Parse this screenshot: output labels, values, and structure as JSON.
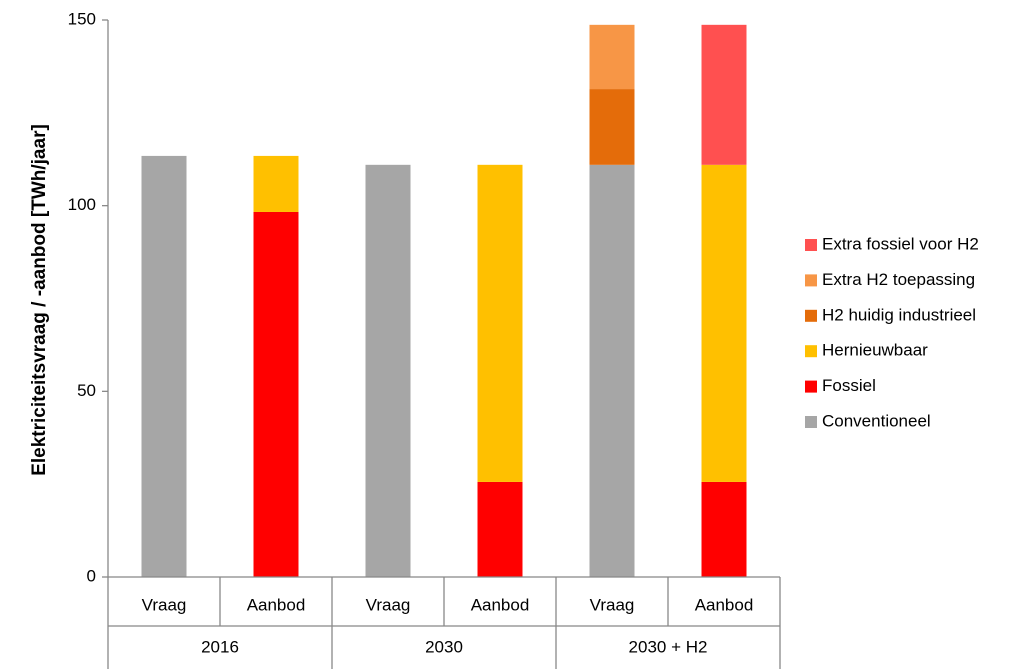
{
  "chart_data": {
    "type": "stacked-bar",
    "y_label": "Elektriciteitsvraag / -aanbod  [TWh/jaar]",
    "categories": [
      "Vraag",
      "Aanbod",
      "Vraag",
      "Aanbod",
      "Vraag",
      "Aanbod"
    ],
    "groups": [
      "2016",
      "2030",
      "2030 + H2"
    ],
    "series": [
      {
        "name": "Conventioneel",
        "color": "#a6a6a6",
        "values": [
          113.4,
          null,
          111.0,
          null,
          111.0,
          null
        ]
      },
      {
        "name": "Fossiel",
        "color": "#ff0000",
        "values": [
          null,
          98.3,
          null,
          25.6,
          null,
          25.6
        ]
      },
      {
        "name": "Hernieuwbaar",
        "color": "#ffc000",
        "values": [
          null,
          15.1,
          null,
          85.4,
          null,
          85.4
        ]
      },
      {
        "name": "H2 huidig industrieel",
        "color": "#e46c0a",
        "values": [
          null,
          null,
          null,
          null,
          20.4,
          null
        ]
      },
      {
        "name": "Extra H2 toepassing",
        "color": "#f79646",
        "values": [
          null,
          null,
          null,
          null,
          17.3,
          null
        ]
      },
      {
        "name": "Extra fossiel voor H2",
        "color": "#ff5050",
        "values": [
          null,
          null,
          null,
          null,
          null,
          37.7
        ]
      }
    ],
    "ylim": [
      0,
      150
    ],
    "yticks": [
      0,
      50,
      100,
      150
    ],
    "grid": false,
    "legend": "right"
  }
}
